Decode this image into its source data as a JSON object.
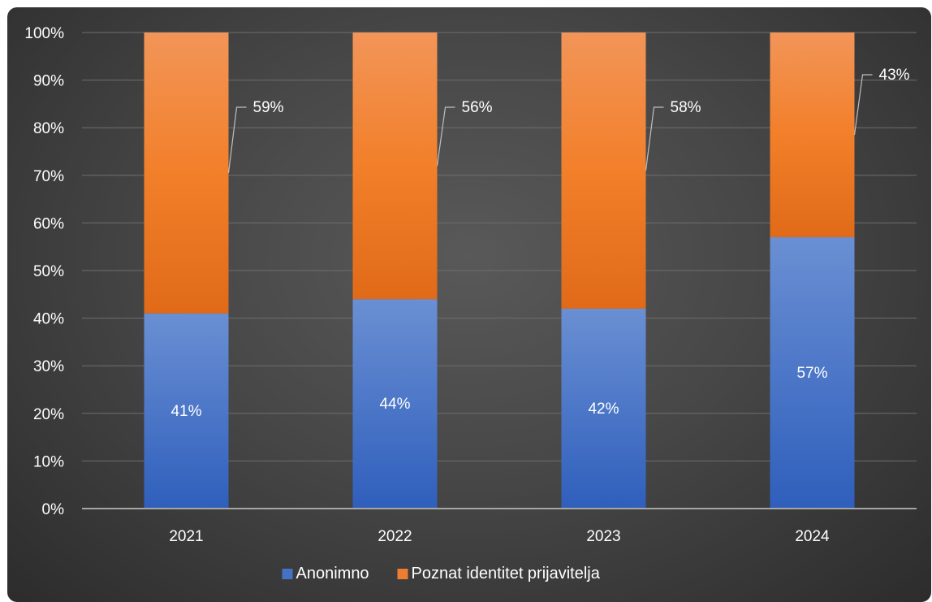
{
  "chart_data": {
    "type": "bar",
    "stacked": true,
    "percent": true,
    "categories": [
      "2021",
      "2022",
      "2023",
      "2024"
    ],
    "series": [
      {
        "name": "Anonimno",
        "values": [
          41,
          44,
          42,
          57
        ],
        "labels": [
          "41%",
          "44%",
          "42%",
          "57%"
        ],
        "color": "#4472c4"
      },
      {
        "name": "Poznat identitet prijavitelja",
        "values": [
          59,
          56,
          58,
          43
        ],
        "labels": [
          "59%",
          "56%",
          "58%",
          "43%"
        ],
        "color": "#ed7d31"
      }
    ],
    "title": "",
    "xlabel": "",
    "ylabel": "",
    "ylim": [
      0,
      100
    ],
    "yticks": [
      "0%",
      "10%",
      "20%",
      "30%",
      "40%",
      "50%",
      "60%",
      "70%",
      "80%",
      "90%",
      "100%"
    ],
    "grid": true,
    "legend": "bottom",
    "background": "#404040",
    "text_color": "#ffffff"
  }
}
